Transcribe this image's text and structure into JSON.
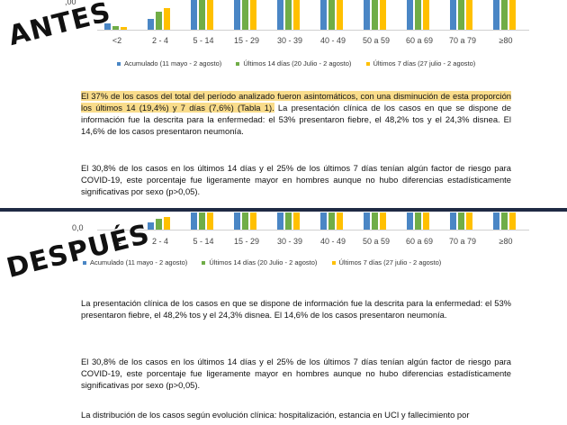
{
  "labels": {
    "before": "ANTES",
    "after": "DESPUÉS"
  },
  "chart_data": {
    "type": "bar",
    "categories": [
      "<2",
      "2 - 4",
      "5 - 14",
      "15 - 29",
      "30 - 39",
      "40 - 49",
      "50 a 59",
      "60 a 69",
      "70 a 79",
      "≥80"
    ],
    "series": [
      {
        "name": "Acumulado (11 mayo - 2 agosto)",
        "color": "#4a86c5"
      },
      {
        "name": "Últimos 14 días (20 Julio - 2 agosto)",
        "color": "#70ad47"
      },
      {
        "name": "Últimos 7 días (27 julio - 2 agosto)",
        "color": "#ffc000"
      }
    ],
    "y_tick": "0,0"
  },
  "before": {
    "highlight": "El 37% de los casos del total del período analizado fueron asintomáticos, con una disminución de esta proporción los últimos 14 (19,4%) y 7 días (7,6%) (Tabla 1).",
    "p1_rest": " La presentación clínica de los casos en que se dispone de información fue la descrita para la enfermedad: el 53% presentaron fiebre, el 48,2% tos y el 24,3% disnea. El 14,6% de los casos presentaron neumonía.",
    "p2": "El 30,8% de los casos en los últimos 14 días y el 25% de los últimos 7 días tenían algún factor de riesgo para COVID-19, este porcentaje fue ligeramente mayor en hombres aunque no hubo diferencias estadísticamente significativas por sexo (p>0,05)."
  },
  "after": {
    "p1": "La presentación clínica de los casos en que se dispone de información fue la descrita para la enfermedad: el 53% presentaron fiebre, el 48,2% tos y el 24,3% disnea. El 14,6% de los casos presentaron neumonía.",
    "p2": "El 30,8% de los casos en los últimos 14 días y el 25% de los últimos 7 días tenían algún factor de riesgo para COVID-19, este porcentaje fue ligeramente mayor en hombres aunque no hubo diferencias estadísticamente significativas por sexo (p>0,05).",
    "p3": "La distribución de los casos según evolución clínica: hospitalización, estancia en UCI y fallecimiento por"
  }
}
